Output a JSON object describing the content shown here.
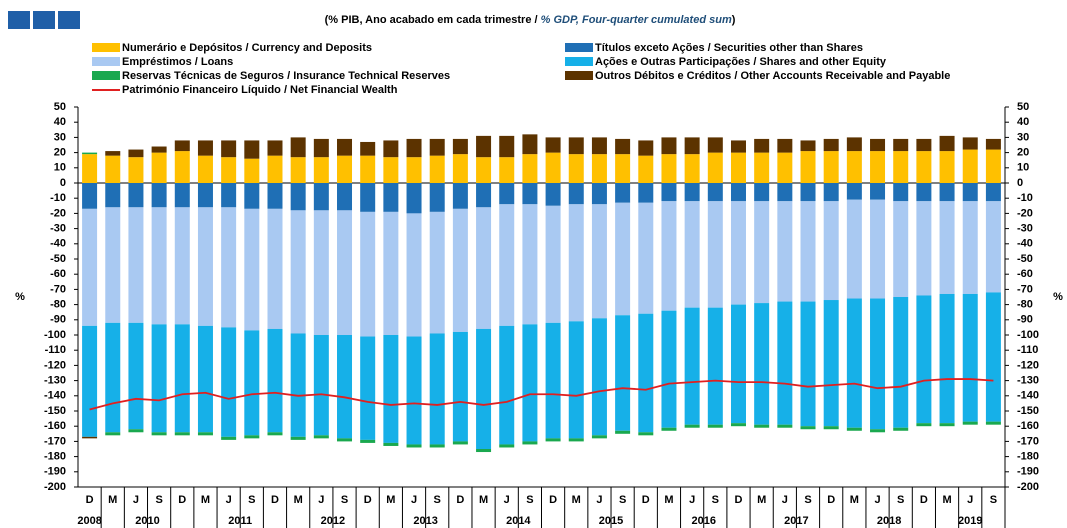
{
  "chart_data": {
    "type": "stacked-bar",
    "title_parts": [
      "(% PIB, Ano acabado em cada trimestre / ",
      "% GDP, Four-quarter cumulated sum",
      ")"
    ],
    "y_axis_label": "%",
    "groups": [
      {
        "year": "2008",
        "quarters": [
          "D"
        ]
      },
      {
        "year": "2010",
        "quarters": [
          "M",
          "J",
          "S",
          "D"
        ]
      },
      {
        "year": "2011",
        "quarters": [
          "M",
          "J",
          "S",
          "D"
        ]
      },
      {
        "year": "2012",
        "quarters": [
          "M",
          "J",
          "S",
          "D"
        ]
      },
      {
        "year": "2013",
        "quarters": [
          "M",
          "J",
          "S",
          "D"
        ]
      },
      {
        "year": "2014",
        "quarters": [
          "M",
          "J",
          "S",
          "D"
        ]
      },
      {
        "year": "2015",
        "quarters": [
          "M",
          "J",
          "S",
          "D"
        ]
      },
      {
        "year": "2016",
        "quarters": [
          "M",
          "J",
          "S",
          "D"
        ]
      },
      {
        "year": "2017",
        "quarters": [
          "M",
          "J",
          "S",
          "D"
        ]
      },
      {
        "year": "2018",
        "quarters": [
          "M",
          "J",
          "S",
          "D"
        ]
      },
      {
        "year": "2019",
        "quarters": [
          "M",
          "J",
          "S"
        ]
      }
    ],
    "ylim": [
      -200,
      50
    ],
    "yticks": [
      50,
      40,
      30,
      20,
      10,
      0,
      -10,
      -20,
      -30,
      -40,
      -50,
      -60,
      -70,
      -80,
      -90,
      -100,
      -110,
      -120,
      -130,
      -140,
      -150,
      -160,
      -170,
      -180,
      -190,
      -200
    ],
    "series": [
      {
        "name": "Numerário e Depósitos / Currency and Deposits",
        "color": "#ffc000",
        "values": [
          19,
          18,
          17,
          20,
          21,
          18,
          17,
          16,
          18,
          17,
          17,
          18,
          18,
          17,
          17,
          18,
          19,
          17,
          17,
          19,
          20,
          19,
          19,
          19,
          18,
          19,
          19,
          20,
          20,
          20,
          20,
          21,
          21,
          21,
          21,
          21,
          21,
          21,
          22,
          22
        ]
      },
      {
        "name": "Empréstimos / Loans",
        "color": "#a9c9f2",
        "values": [
          -77,
          -76,
          -76,
          -77,
          -77,
          -78,
          -79,
          -80,
          -79,
          -81,
          -82,
          -82,
          -82,
          -81,
          -81,
          -80,
          -81,
          -80,
          -80,
          -79,
          -77,
          -77,
          -75,
          -74,
          -73,
          -72,
          -70,
          -70,
          -68,
          -67,
          -66,
          -66,
          -65,
          -65,
          -65,
          -63,
          -62,
          -61,
          -61,
          -60
        ]
      },
      {
        "name": "Reservas Técnicas de Seguros / Insurance Technical Reserves",
        "color": "#1aa84f",
        "values": [
          1,
          -2,
          -2,
          -2,
          -2,
          -2,
          -2,
          -2,
          -2,
          -2,
          -2,
          -2,
          -2,
          -2,
          -2,
          -2,
          -2,
          -2,
          -2,
          -2,
          -2,
          -2,
          -2,
          -2,
          -2,
          -2,
          -2,
          -2,
          -2,
          -2,
          -2,
          -2,
          -2,
          -2,
          -2,
          -2,
          -2,
          -2,
          -2,
          -2
        ]
      },
      {
        "name": "Títulos exceto Ações / Securities other than Shares",
        "color": "#1f6fb5",
        "values": [
          -17,
          -16,
          -16,
          -16,
          -16,
          -16,
          -16,
          -17,
          -17,
          -18,
          -18,
          -18,
          -19,
          -19,
          -20,
          -19,
          -17,
          -16,
          -14,
          -14,
          -15,
          -14,
          -14,
          -13,
          -13,
          -12,
          -12,
          -12,
          -12,
          -12,
          -12,
          -12,
          -12,
          -11,
          -11,
          -12,
          -12,
          -12,
          -12,
          -12
        ]
      },
      {
        "name": "Ações e Outras Participações / Shares and other Equity",
        "color": "#16b0e8",
        "values": [
          -73,
          -72,
          -70,
          -71,
          -71,
          -70,
          -72,
          -69,
          -68,
          -68,
          -66,
          -68,
          -68,
          -71,
          -71,
          -73,
          -72,
          -79,
          -78,
          -77,
          -76,
          -77,
          -77,
          -76,
          -78,
          -77,
          -77,
          -77,
          -78,
          -80,
          -81,
          -82,
          -83,
          -85,
          -86,
          -86,
          -84,
          -85,
          -84,
          -85
        ]
      },
      {
        "name": "Outros Débitos e Créditos / Other Accounts Receivable and Payable",
        "color": "#5c3300",
        "values": [
          -1,
          3,
          5,
          4,
          7,
          10,
          11,
          12,
          10,
          13,
          12,
          11,
          9,
          11,
          12,
          11,
          10,
          14,
          14,
          13,
          10,
          11,
          11,
          10,
          10,
          11,
          11,
          10,
          8,
          9,
          9,
          7,
          8,
          9,
          8,
          8,
          8,
          10,
          8,
          7
        ]
      }
    ],
    "line": {
      "name": "Património Financeiro Líquido / Net Financial Wealth",
      "color": "#e02020",
      "values": [
        -149,
        -145,
        -142,
        -143,
        -139,
        -138,
        -142,
        -139,
        -138,
        -140,
        -139,
        -141,
        -144,
        -146,
        -145,
        -146,
        -144,
        -146,
        -144,
        -139,
        -139,
        -140,
        -137,
        -135,
        -136,
        -132,
        -131,
        -130,
        -131,
        -131,
        -132,
        -134,
        -133,
        -132,
        -135,
        -134,
        -130,
        -129,
        -129,
        -130
      ]
    }
  }
}
